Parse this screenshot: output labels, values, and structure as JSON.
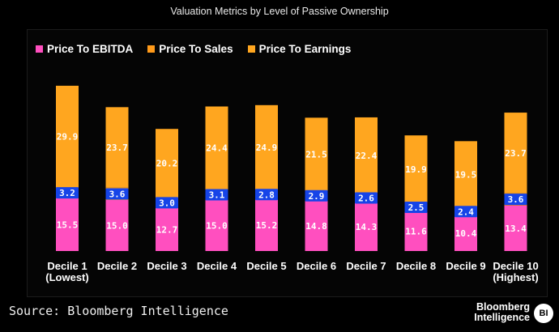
{
  "chart_data": {
    "type": "bar",
    "stacked": true,
    "title": "Valuation Metrics by Level of Passive Ownership",
    "categories": [
      "Decile 1\n(Lowest)",
      "Decile 2",
      "Decile 3",
      "Decile 4",
      "Decile 5",
      "Decile 6",
      "Decile 7",
      "Decile 8",
      "Decile 9",
      "Decile 10\n(Highest)"
    ],
    "series": [
      {
        "name": "Price To EBITDA",
        "color": "#ff4fbf",
        "values": [
          15.5,
          15.0,
          12.7,
          15.0,
          15.2,
          14.8,
          14.3,
          11.6,
          10.4,
          13.4
        ]
      },
      {
        "name": "Price To Sales",
        "color": "#ff9a1a",
        "values": [
          3.2,
          3.6,
          3.0,
          3.1,
          2.8,
          2.9,
          2.6,
          2.5,
          2.4,
          3.6
        ]
      },
      {
        "name": "Price To Earnings",
        "color": "#ffa61f",
        "values": [
          29.9,
          23.7,
          20.2,
          24.4,
          24.9,
          21.5,
          22.4,
          19.9,
          19.5,
          23.7
        ]
      }
    ],
    "label_box_color": "#1644e8",
    "legend_position": "top-left",
    "grid": false
  },
  "footer": {
    "source": "Source: Bloomberg Intelligence",
    "brand_line1": "Bloomberg",
    "brand_line2": "Intelligence",
    "badge": "BI"
  }
}
